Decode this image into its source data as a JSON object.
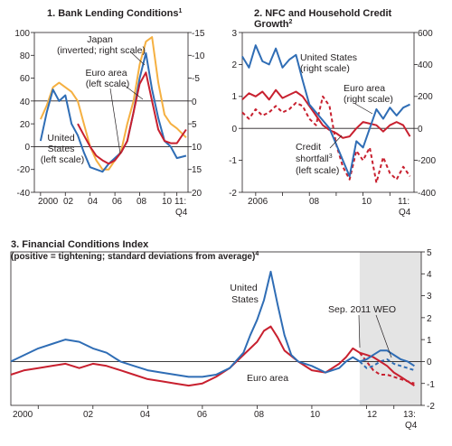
{
  "colors": {
    "blue": "#2f6db5",
    "red": "#c8202f",
    "orange": "#f5b041",
    "shade": "#e4e4e4",
    "axis": "#231f20"
  },
  "chart_data": [
    {
      "type": "line",
      "title": "1. Bank Lending Conditions",
      "title_sup": "1",
      "left_ticks": [
        "100",
        "80",
        "60",
        "40",
        "20",
        "0",
        "-20",
        "-40"
      ],
      "right_ticks": [
        "-15",
        "-10",
        "-5",
        "0",
        "5",
        "10",
        "15",
        "20"
      ],
      "x_ticks": [
        "2000",
        "02",
        "04",
        "06",
        "08",
        "10",
        "11:"
      ],
      "x_ticks_sub": "Q4",
      "ylim_left": [
        -40,
        100
      ],
      "ylim_right": [
        20,
        -15
      ],
      "series": [
        {
          "name": "Japan (inverted; right scale)",
          "axis": "right",
          "color": "orange",
          "x": [
            2000.0,
            2000.5,
            2001.0,
            2001.5,
            2002.0,
            2002.5,
            2003.0,
            2003.5,
            2004.0,
            2004.5,
            2005.0,
            2005.5,
            2006.0,
            2006.5,
            2007.0,
            2007.5,
            2008.0,
            2008.5,
            2009.0,
            2009.5,
            2010.0,
            2010.5,
            2011.0,
            2011.75
          ],
          "y": [
            4,
            1,
            -3,
            -4,
            -3,
            -2,
            0,
            5,
            10,
            13,
            15,
            15,
            13,
            11,
            5,
            0,
            -8,
            -13,
            -14,
            -4,
            3,
            5,
            6,
            8
          ]
        },
        {
          "name": "United States (left scale)",
          "axis": "left",
          "color": "blue",
          "x": [
            2000.0,
            2000.5,
            2001.0,
            2001.5,
            2002.0,
            2002.5,
            2003.0,
            2003.5,
            2004.0,
            2004.5,
            2005.0,
            2005.5,
            2006.0,
            2006.5,
            2007.0,
            2007.5,
            2008.0,
            2008.5,
            2009.0,
            2009.5,
            2010.0,
            2010.5,
            2011.0,
            2011.75
          ],
          "y": [
            5,
            30,
            50,
            40,
            45,
            20,
            10,
            -5,
            -18,
            -20,
            -22,
            -15,
            -10,
            -5,
            5,
            30,
            60,
            82,
            50,
            25,
            5,
            0,
            -10,
            -8
          ]
        },
        {
          "name": "Euro area (left scale)",
          "axis": "left",
          "color": "red",
          "x": [
            2003.0,
            2003.5,
            2004.0,
            2004.5,
            2005.0,
            2005.5,
            2006.0,
            2006.5,
            2007.0,
            2007.5,
            2008.0,
            2008.5,
            2009.0,
            2009.5,
            2010.0,
            2010.5,
            2011.0,
            2011.75
          ],
          "y": [
            20,
            10,
            0,
            -8,
            -12,
            -15,
            -12,
            -5,
            5,
            30,
            55,
            65,
            40,
            15,
            5,
            3,
            3,
            15
          ]
        }
      ],
      "labels": {
        "japan": [
          "Japan",
          "(inverted; right scale)"
        ],
        "euro": [
          "Euro area",
          "(left scale)"
        ],
        "us": [
          "United",
          "States",
          "(left scale)"
        ]
      }
    },
    {
      "type": "line",
      "title": [
        "2. NFC and Household Credit",
        "Growth"
      ],
      "title_sup": "2",
      "left_ticks": [
        "3",
        "2",
        "1",
        "0",
        "-1",
        "-2"
      ],
      "right_ticks": [
        "600",
        "400",
        "200",
        "0",
        "-200",
        "-400"
      ],
      "x_ticks": [
        "2006",
        "08",
        "10",
        "11:"
      ],
      "x_ticks_sub": "Q4",
      "ylim_left": [
        -2,
        3
      ],
      "ylim_right": [
        -400,
        600
      ],
      "series": [
        {
          "name": "United States (right scale)",
          "axis": "right",
          "color": "blue",
          "x": [
            2005.5,
            2005.75,
            2006.0,
            2006.25,
            2006.5,
            2006.75,
            2007.0,
            2007.25,
            2007.5,
            2007.75,
            2008.0,
            2008.25,
            2008.5,
            2008.75,
            2009.0,
            2009.25,
            2009.5,
            2009.75,
            2010.0,
            2010.25,
            2010.5,
            2010.75,
            2011.0,
            2011.25,
            2011.5,
            2011.75
          ],
          "y": [
            450,
            380,
            520,
            420,
            400,
            500,
            380,
            430,
            460,
            300,
            150,
            100,
            50,
            0,
            -100,
            -200,
            -300,
            -80,
            -120,
            0,
            120,
            60,
            130,
            80,
            130,
            150
          ]
        },
        {
          "name": "Euro area (right scale)",
          "axis": "right",
          "color": "red",
          "x": [
            2005.5,
            2005.75,
            2006.0,
            2006.25,
            2006.5,
            2006.75,
            2007.0,
            2007.25,
            2007.5,
            2007.75,
            2008.0,
            2008.25,
            2008.5,
            2008.75,
            2009.0,
            2009.25,
            2009.5,
            2009.75,
            2010.0,
            2010.25,
            2010.5,
            2010.75,
            2011.0,
            2011.25,
            2011.5,
            2011.75
          ],
          "y": [
            180,
            220,
            200,
            230,
            180,
            240,
            190,
            210,
            230,
            200,
            140,
            80,
            20,
            -10,
            -30,
            -60,
            -50,
            0,
            40,
            30,
            20,
            -20,
            20,
            40,
            20,
            -50
          ]
        },
        {
          "name": "Credit shortfall (left scale)",
          "axis": "left",
          "color": "red",
          "dashed": true,
          "x": [
            2005.5,
            2005.75,
            2006.0,
            2006.25,
            2006.5,
            2006.75,
            2007.0,
            2007.25,
            2007.5,
            2007.75,
            2008.0,
            2008.25,
            2008.5,
            2008.75,
            2009.0,
            2009.25,
            2009.5,
            2009.75,
            2010.0,
            2010.25,
            2010.5,
            2010.75,
            2011.0,
            2011.25,
            2011.5,
            2011.75
          ],
          "y": [
            0.5,
            0.3,
            0.6,
            0.4,
            0.5,
            0.7,
            0.5,
            0.6,
            0.8,
            0.7,
            0.3,
            0.1,
            1.0,
            0.7,
            -0.5,
            -1.2,
            -1.6,
            -0.7,
            -1.0,
            -0.6,
            -1.7,
            -0.9,
            -1.4,
            -1.6,
            -1.2,
            -1.5
          ]
        }
      ],
      "labels": {
        "us": [
          "United States",
          "(right scale)"
        ],
        "euro": [
          "Euro area",
          "(right scale)"
        ],
        "shortfall": [
          "Credit",
          "shortfall",
          "(left scale)"
        ],
        "shortfall_sup": "3"
      }
    },
    {
      "type": "line",
      "title": "3. Financial Conditions Index",
      "subtitle": "(positive = tightening; standard deviations from average)",
      "subtitle_sup": "4",
      "right_ticks": [
        "5",
        "4",
        "3",
        "2",
        "1",
        "0",
        "-1",
        "-2"
      ],
      "x_ticks": [
        "2000",
        "02",
        "04",
        "06",
        "08",
        "10",
        "12",
        "13:"
      ],
      "x_ticks_sub": "Q4",
      "ylim": [
        -2,
        5
      ],
      "shaded_from": 2011.75,
      "series": [
        {
          "name": "United States",
          "color": "blue",
          "x": [
            1999.0,
            1999.5,
            2000.0,
            2000.5,
            2001.0,
            2001.5,
            2002.0,
            2002.5,
            2003.0,
            2003.5,
            2004.0,
            2004.5,
            2005.0,
            2005.5,
            2006.0,
            2006.5,
            2007.0,
            2007.5,
            2007.75,
            2008.0,
            2008.25,
            2008.5,
            2008.75,
            2009.0,
            2009.25,
            2009.5,
            2010.0,
            2010.5,
            2011.0,
            2011.25,
            2011.5,
            2011.75
          ],
          "y": [
            0.0,
            0.3,
            0.6,
            0.8,
            1.0,
            0.9,
            0.6,
            0.4,
            0.0,
            -0.2,
            -0.4,
            -0.5,
            -0.6,
            -0.7,
            -0.7,
            -0.6,
            -0.3,
            0.4,
            1.2,
            1.9,
            2.8,
            4.1,
            2.6,
            1.2,
            0.3,
            0.0,
            -0.2,
            -0.5,
            -0.3,
            0.0,
            0.2,
            0.0
          ]
        },
        {
          "name": "Euro area",
          "color": "red",
          "x": [
            1999.0,
            1999.5,
            2000.0,
            2000.5,
            2001.0,
            2001.5,
            2002.0,
            2002.5,
            2003.0,
            2003.5,
            2004.0,
            2004.5,
            2005.0,
            2005.5,
            2006.0,
            2006.5,
            2007.0,
            2007.5,
            2008.0,
            2008.25,
            2008.5,
            2008.75,
            2009.0,
            2009.5,
            2010.0,
            2010.5,
            2011.0,
            2011.25,
            2011.5,
            2011.75
          ],
          "y": [
            -0.6,
            -0.4,
            -0.3,
            -0.2,
            -0.1,
            -0.3,
            -0.1,
            -0.2,
            -0.4,
            -0.6,
            -0.8,
            -0.9,
            -1.0,
            -1.1,
            -1.0,
            -0.7,
            -0.3,
            0.3,
            0.9,
            1.4,
            1.6,
            1.1,
            0.5,
            0.0,
            -0.4,
            -0.5,
            -0.1,
            0.2,
            0.6,
            0.4
          ]
        },
        {
          "name": "United States (Sep. 2011 WEO)",
          "color": "blue",
          "dashed": true,
          "x": [
            2011.75,
            2012.0,
            2012.25,
            2012.5,
            2012.75,
            2013.0,
            2013.25,
            2013.5,
            2013.75
          ],
          "y": [
            0.0,
            -0.3,
            -0.2,
            0.0,
            0.1,
            -0.1,
            -0.2,
            -0.3,
            -0.4
          ]
        },
        {
          "name": "Euro area (Sep. 2011 WEO)",
          "color": "red",
          "dashed": true,
          "x": [
            2011.75,
            2012.0,
            2012.25,
            2012.5,
            2012.75,
            2013.0,
            2013.25,
            2013.5,
            2013.75
          ],
          "y": [
            0.4,
            0.0,
            -0.4,
            -0.6,
            -0.6,
            -0.7,
            -0.8,
            -0.9,
            -1.0
          ]
        },
        {
          "name": "United States (solid projection)",
          "color": "blue",
          "x": [
            2011.75,
            2012.0,
            2012.25,
            2012.5,
            2012.75,
            2013.0,
            2013.25,
            2013.5,
            2013.75
          ],
          "y": [
            0.0,
            0.1,
            0.3,
            0.5,
            0.5,
            0.3,
            0.1,
            0.0,
            -0.2
          ]
        },
        {
          "name": "Euro area (solid projection)",
          "color": "red",
          "x": [
            2011.75,
            2012.0,
            2012.25,
            2012.5,
            2012.75,
            2013.0,
            2013.25,
            2013.5,
            2013.75
          ],
          "y": [
            0.4,
            0.3,
            0.2,
            0.0,
            -0.2,
            -0.5,
            -0.7,
            -0.9,
            -1.1
          ]
        }
      ],
      "labels": {
        "us": [
          "United",
          "States"
        ],
        "euro": "Euro area",
        "weo": "Sep. 2011 WEO"
      }
    }
  ]
}
